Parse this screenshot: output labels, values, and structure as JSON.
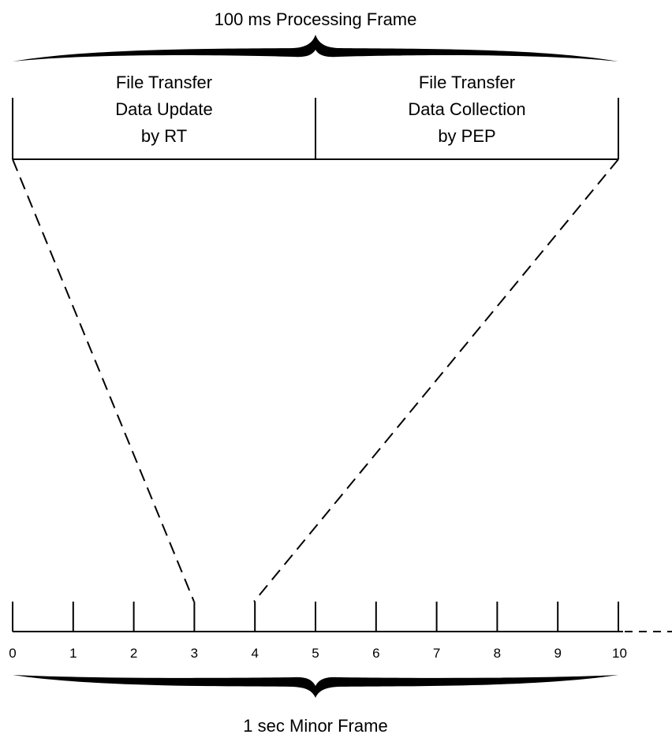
{
  "top_brace_label": "100 ms Processing Frame",
  "left_box": {
    "lines": [
      "File Transfer",
      "Data Update",
      "by RT"
    ]
  },
  "right_box": {
    "lines": [
      "File Transfer",
      "Data Collection",
      "by PEP"
    ]
  },
  "timeline": {
    "ticks": [
      "0",
      "1",
      "2",
      "3",
      "4",
      "5",
      "6",
      "7",
      "8",
      "9",
      "10"
    ]
  },
  "bottom_brace_label": "1 sec Minor Frame"
}
